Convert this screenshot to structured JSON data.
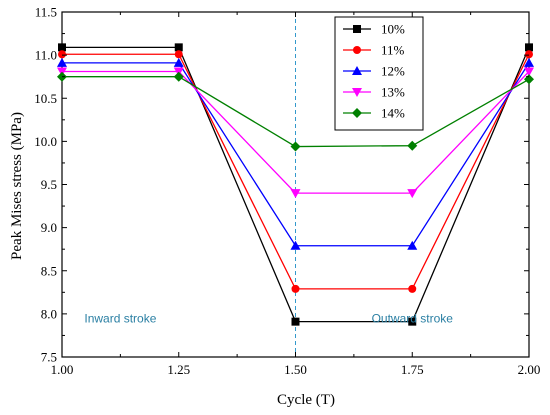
{
  "chart_data": {
    "type": "line",
    "xlabel": "Cycle (T)",
    "ylabel": "Peak Mises stress (MPa)",
    "xlim": [
      1.0,
      2.0
    ],
    "ylim": [
      7.5,
      11.5
    ],
    "x_ticks": [
      "1.00",
      "1.25",
      "1.50",
      "1.75",
      "2.00"
    ],
    "y_ticks": [
      "7.5",
      "8.0",
      "8.5",
      "9.0",
      "9.5",
      "10.0",
      "10.5",
      "11.0",
      "11.5"
    ],
    "x": [
      1.0,
      1.25,
      1.5,
      1.75,
      2.0
    ],
    "grid": false,
    "legend_position": "top-right",
    "series": [
      {
        "name": "10%",
        "values": [
          11.09,
          11.09,
          7.91,
          7.91,
          11.09
        ],
        "color": "#000000",
        "marker": "square"
      },
      {
        "name": "11%",
        "values": [
          11.01,
          11.01,
          8.29,
          8.29,
          11.01
        ],
        "color": "#ff0000",
        "marker": "circle"
      },
      {
        "name": "12%",
        "values": [
          10.91,
          10.91,
          8.79,
          8.79,
          10.91
        ],
        "color": "#0000ff",
        "marker": "triangle-up"
      },
      {
        "name": "13%",
        "values": [
          10.81,
          10.81,
          9.4,
          9.4,
          10.81
        ],
        "color": "#ff00ff",
        "marker": "triangle-down"
      },
      {
        "name": "14%",
        "values": [
          10.75,
          10.75,
          9.94,
          9.95,
          10.72
        ],
        "color": "#008000",
        "marker": "diamond"
      }
    ],
    "reference_line": {
      "x": 1.5,
      "color": "#3399cc",
      "style": "dashed"
    },
    "annotations": [
      {
        "text": "Inward stroke",
        "x": 1.125,
        "y": 7.9,
        "color": "#2a7fa3"
      },
      {
        "text": "Outward stroke",
        "x": 1.75,
        "y": 7.9,
        "color": "#2a7fa3"
      }
    ]
  }
}
